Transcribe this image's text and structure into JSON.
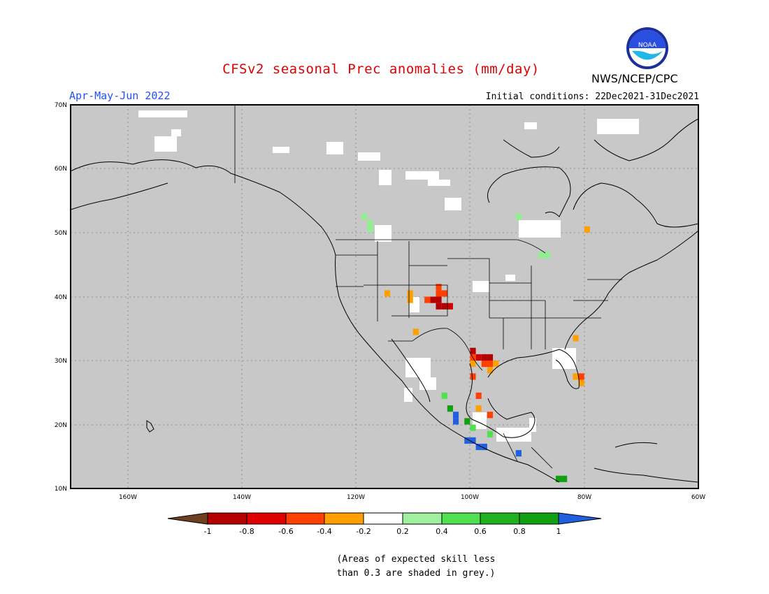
{
  "title": "CFSv2 seasonal Prec anomalies (mm/day)",
  "organization": "NWS/NCEP/CPC",
  "logo_text": "NOAA",
  "period": "Apr-May-Jun 2022",
  "initial_conditions": "Initial conditions: 22Dec2021-31Dec2021",
  "map": {
    "lat_labels": [
      "70N",
      "60N",
      "50N",
      "40N",
      "30N",
      "20N",
      "10N"
    ],
    "lon_labels": [
      "160W",
      "140W",
      "120W",
      "100W",
      "80W",
      "60W"
    ],
    "background_color": "#c8c8c8",
    "grid": "dotted"
  },
  "legend": {
    "ticks": [
      "-1",
      "-0.8",
      "-0.6",
      "-0.4",
      "-0.2",
      "0.2",
      "0.4",
      "0.6",
      "0.8",
      "1"
    ],
    "colors": [
      "#6e4020",
      "#b40000",
      "#e00000",
      "#ff4000",
      "#ffa000",
      "#ffffff",
      "#a0f0a0",
      "#50e050",
      "#20b020",
      "#10a010",
      "#2060e0"
    ]
  },
  "note": {
    "line1": "(Areas of expected skill less",
    "line2": "than 0.3 are shaded in grey.)"
  },
  "anomaly_cells": [
    {
      "lon": -106,
      "lat": 38,
      "category": "-1"
    },
    {
      "lon": -105,
      "lat": 38,
      "category": "-1"
    },
    {
      "lon": -106,
      "lat": 39,
      "category": "-1"
    },
    {
      "lon": -107,
      "lat": 39,
      "category": "-1"
    },
    {
      "lon": -104,
      "lat": 38,
      "category": "-0.8"
    },
    {
      "lon": -108,
      "lat": 39,
      "category": "-0.6"
    },
    {
      "lon": -106,
      "lat": 40,
      "category": "-0.6"
    },
    {
      "lon": -105,
      "lat": 40,
      "category": "-0.6"
    },
    {
      "lon": -106,
      "lat": 41,
      "category": "-0.6"
    },
    {
      "lon": -111,
      "lat": 39,
      "category": "-0.4"
    },
    {
      "lon": -111,
      "lat": 40,
      "category": "-0.4"
    },
    {
      "lon": -115,
      "lat": 40,
      "category": "-0.4"
    },
    {
      "lon": -110,
      "lat": 34,
      "category": "-0.4"
    },
    {
      "lon": -98,
      "lat": 30,
      "category": "-1"
    },
    {
      "lon": -97,
      "lat": 30,
      "category": "-1"
    },
    {
      "lon": -100,
      "lat": 31,
      "category": "-1"
    },
    {
      "lon": -99,
      "lat": 30,
      "category": "-0.8"
    },
    {
      "lon": -100,
      "lat": 30,
      "category": "-0.6"
    },
    {
      "lon": -98,
      "lat": 29,
      "category": "-0.6"
    },
    {
      "lon": -97,
      "lat": 29,
      "category": "-0.6"
    },
    {
      "lon": -96,
      "lat": 29,
      "category": "-0.4"
    },
    {
      "lon": -100,
      "lat": 29,
      "category": "-0.4"
    },
    {
      "lon": -97,
      "lat": 28,
      "category": "-0.4"
    },
    {
      "lon": -100,
      "lat": 27,
      "category": "-0.6"
    },
    {
      "lon": -99,
      "lat": 24,
      "category": "-0.6"
    },
    {
      "lon": -99,
      "lat": 22,
      "category": "-0.4"
    },
    {
      "lon": -97,
      "lat": 21,
      "category": "-0.6"
    },
    {
      "lon": -81,
      "lat": 27,
      "category": "-0.6"
    },
    {
      "lon": -82,
      "lat": 27,
      "category": "-0.4"
    },
    {
      "lon": -81,
      "lat": 26,
      "category": "-0.4"
    },
    {
      "lon": -82,
      "lat": 33,
      "category": "-0.4"
    },
    {
      "lon": -80,
      "lat": 50,
      "category": "-0.4"
    },
    {
      "lon": -105,
      "lat": 24,
      "category": "0.6"
    },
    {
      "lon": -104,
      "lat": 22,
      "category": "0.8"
    },
    {
      "lon": -103,
      "lat": 21,
      "category": "1"
    },
    {
      "lon": -103,
      "lat": 20,
      "category": "1"
    },
    {
      "lon": -101,
      "lat": 17,
      "category": "1"
    },
    {
      "lon": -100,
      "lat": 17,
      "category": "1"
    },
    {
      "lon": -99,
      "lat": 16,
      "category": "1"
    },
    {
      "lon": -98,
      "lat": 16,
      "category": "1"
    },
    {
      "lon": -92,
      "lat": 15,
      "category": "1"
    },
    {
      "lon": -101,
      "lat": 20,
      "category": "0.8"
    },
    {
      "lon": -100,
      "lat": 19,
      "category": "0.6"
    },
    {
      "lon": -97,
      "lat": 18,
      "category": "0.6"
    },
    {
      "lon": -85,
      "lat": 11,
      "category": "0.8"
    },
    {
      "lon": -84,
      "lat": 11,
      "category": "0.8"
    },
    {
      "lon": -118,
      "lat": 51,
      "category": "0.4"
    },
    {
      "lon": -118,
      "lat": 50,
      "category": "0.4"
    },
    {
      "lon": -119,
      "lat": 52,
      "category": "0.4"
    },
    {
      "lon": -88,
      "lat": 46,
      "category": "0.4"
    },
    {
      "lon": -87,
      "lat": 46,
      "category": "0.4"
    },
    {
      "lon": -92,
      "lat": 52,
      "category": "0.4"
    }
  ]
}
